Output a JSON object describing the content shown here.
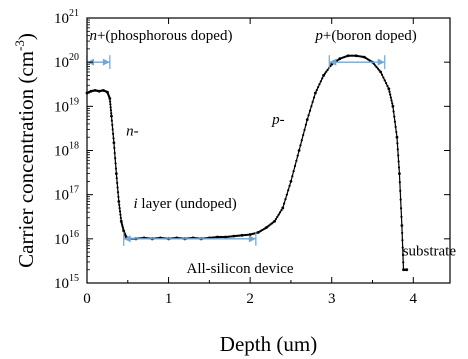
{
  "chart_data": {
    "type": "scatter",
    "xlabel": "Depth (um)",
    "ylabel_main": "Carrier concentration (cm",
    "ylabel_exp": "-3",
    "ylabel_tail": ")",
    "xlim": [
      0,
      4.45
    ],
    "ylim_exp": [
      15,
      21
    ],
    "y_scale": "log",
    "x_ticks": [
      {
        "value": 0,
        "label": "0"
      },
      {
        "value": 1,
        "label": "1"
      },
      {
        "value": 2,
        "label": "2"
      },
      {
        "value": 3,
        "label": "3"
      },
      {
        "value": 4,
        "label": "4"
      }
    ],
    "y_ticks": [
      {
        "exp": 15,
        "base": "10",
        "sup": "15"
      },
      {
        "exp": 16,
        "base": "10",
        "sup": "16"
      },
      {
        "exp": 17,
        "base": "10",
        "sup": "17"
      },
      {
        "exp": 18,
        "base": "10",
        "sup": "18"
      },
      {
        "exp": 19,
        "base": "10",
        "sup": "19"
      },
      {
        "exp": 20,
        "base": "10",
        "sup": "20"
      },
      {
        "exp": 21,
        "base": "10",
        "sup": "21"
      }
    ],
    "series_points": [
      [
        0.0,
        2e+19
      ],
      [
        0.05,
        2.2e+19
      ],
      [
        0.1,
        2.3e+19
      ],
      [
        0.15,
        2.2e+19
      ],
      [
        0.2,
        2.3e+19
      ],
      [
        0.25,
        2.1e+19
      ],
      [
        0.28,
        1.5e+19
      ],
      [
        0.3,
        6e+18
      ],
      [
        0.33,
        1.5e+18
      ],
      [
        0.36,
        3e+17
      ],
      [
        0.39,
        7e+16
      ],
      [
        0.42,
        2.5e+16
      ],
      [
        0.45,
        1.5e+16
      ],
      [
        0.48,
        1.1e+16
      ],
      [
        0.5,
        1e+16
      ],
      [
        0.6,
        1e+16
      ],
      [
        0.7,
        1.05e+16
      ],
      [
        0.8,
        1e+16
      ],
      [
        0.9,
        1.05e+16
      ],
      [
        1.0,
        1e+16
      ],
      [
        1.1,
        1.05e+16
      ],
      [
        1.2,
        1e+16
      ],
      [
        1.3,
        1.05e+16
      ],
      [
        1.4,
        1e+16
      ],
      [
        1.5,
        1.05e+16
      ],
      [
        1.6,
        1.1e+16
      ],
      [
        1.7,
        1.1e+16
      ],
      [
        1.8,
        1.15e+16
      ],
      [
        1.9,
        1.2e+16
      ],
      [
        2.0,
        1.25e+16
      ],
      [
        2.1,
        1.4e+16
      ],
      [
        2.2,
        1.8e+16
      ],
      [
        2.3,
        2.5e+16
      ],
      [
        2.4,
        5e+16
      ],
      [
        2.5,
        2e+17
      ],
      [
        2.6,
        1e+18
      ],
      [
        2.7,
        5e+18
      ],
      [
        2.8,
        2e+19
      ],
      [
        2.9,
        5e+19
      ],
      [
        3.0,
        9e+19
      ],
      [
        3.1,
        1.2e+20
      ],
      [
        3.2,
        1.4e+20
      ],
      [
        3.3,
        1.4e+20
      ],
      [
        3.4,
        1.3e+20
      ],
      [
        3.5,
        1e+20
      ],
      [
        3.6,
        6e+19
      ],
      [
        3.7,
        2.5e+19
      ],
      [
        3.75,
        1e+19
      ],
      [
        3.8,
        2e+18
      ],
      [
        3.83,
        3e+17
      ],
      [
        3.86,
        2e+16
      ],
      [
        3.88,
        2000000000000000.0
      ],
      [
        3.92,
        2000000000000000.0
      ]
    ],
    "spans": [
      {
        "x1": 0.0,
        "x2": 0.28,
        "y": 1e+20
      },
      {
        "x1": 0.45,
        "x2": 2.07,
        "y": 1e+16
      },
      {
        "x1": 2.97,
        "x2": 3.65,
        "y": 1e+20
      }
    ],
    "annotations": [
      {
        "italic": "n",
        "text": "+(phosphorous doped)",
        "x": 0.03,
        "y": 3.2e+20
      },
      {
        "italic": "n",
        "text": "-",
        "x": 0.48,
        "y": 2.2e+18
      },
      {
        "italic": "i",
        "text": " layer (undoped)",
        "x": 0.57,
        "y": 5e+16
      },
      {
        "italic": "p",
        "text": "-",
        "x": 2.27,
        "y": 4e+18
      },
      {
        "italic": "p",
        "text": "+(boron doped)",
        "x": 2.8,
        "y": 3.2e+20
      },
      {
        "italic": "",
        "text": "All-silicon device",
        "x": 1.22,
        "y": 1700000000000000.0
      },
      {
        "italic": "",
        "text": "substrate",
        "x": 3.87,
        "y": 4200000000000000.0
      }
    ],
    "colors": {
      "data": "#000000",
      "span": "#6fa8d6"
    }
  }
}
